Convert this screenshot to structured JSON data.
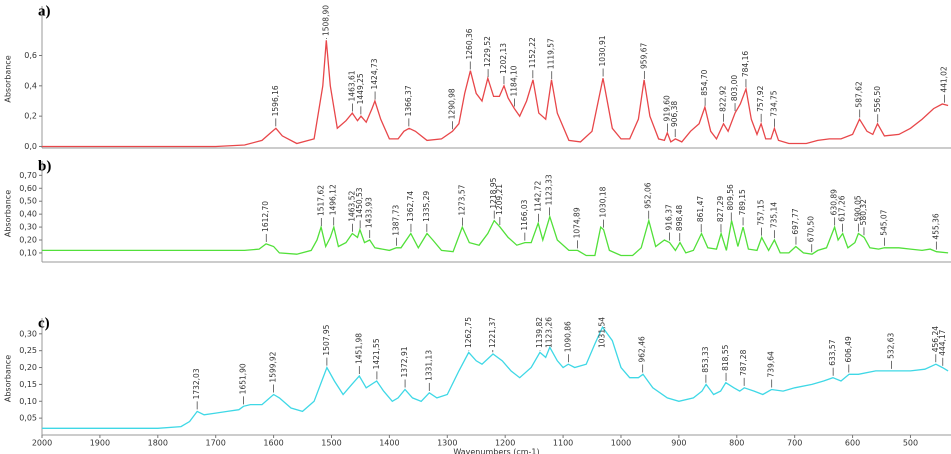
{
  "chart_data": [
    {
      "type": "line",
      "label": "a)",
      "y_label": "Absorbance",
      "color": "#e8474a",
      "xlim": [
        2000,
        430
      ],
      "ylim": [
        -0.01,
        0.9
      ],
      "yticks": [
        {
          "value": 0,
          "label": "0,0"
        },
        {
          "value": 0.2,
          "label": "0,2"
        },
        {
          "value": 0.4,
          "label": "0,4"
        },
        {
          "value": 0.6,
          "label": "0,6"
        }
      ],
      "x": [
        2000,
        1900,
        1800,
        1700,
        1650,
        1620,
        1605,
        1596,
        1585,
        1560,
        1530,
        1515,
        1509,
        1502,
        1490,
        1475,
        1464,
        1455,
        1449,
        1440,
        1430,
        1425,
        1415,
        1400,
        1385,
        1375,
        1366,
        1355,
        1335,
        1310,
        1291,
        1280,
        1270,
        1260,
        1250,
        1240,
        1230,
        1220,
        1210,
        1202,
        1195,
        1184,
        1175,
        1163,
        1152,
        1142,
        1130,
        1120,
        1110,
        1090,
        1070,
        1050,
        1031,
        1015,
        1000,
        985,
        970,
        960,
        950,
        935,
        925,
        920,
        914,
        906,
        895,
        880,
        865,
        855,
        845,
        835,
        823,
        815,
        803,
        794,
        784,
        775,
        765,
        758,
        750,
        741,
        735,
        728,
        710,
        680,
        660,
        640,
        620,
        600,
        588,
        575,
        565,
        557,
        545,
        520,
        500,
        480,
        460,
        445,
        435
      ],
      "values": [
        0,
        0,
        0,
        0,
        0.01,
        0.04,
        0.09,
        0.12,
        0.07,
        0.02,
        0.05,
        0.4,
        0.7,
        0.4,
        0.12,
        0.17,
        0.22,
        0.17,
        0.2,
        0.16,
        0.25,
        0.3,
        0.18,
        0.05,
        0.05,
        0.1,
        0.12,
        0.1,
        0.04,
        0.05,
        0.1,
        0.15,
        0.35,
        0.5,
        0.35,
        0.3,
        0.45,
        0.33,
        0.33,
        0.4,
        0.32,
        0.25,
        0.2,
        0.3,
        0.44,
        0.22,
        0.18,
        0.44,
        0.22,
        0.04,
        0.03,
        0.1,
        0.45,
        0.12,
        0.05,
        0.05,
        0.18,
        0.44,
        0.2,
        0.05,
        0.04,
        0.09,
        0.03,
        0.05,
        0.03,
        0.1,
        0.15,
        0.26,
        0.1,
        0.05,
        0.15,
        0.1,
        0.22,
        0.28,
        0.38,
        0.18,
        0.08,
        0.15,
        0.05,
        0.05,
        0.12,
        0.04,
        0.02,
        0.02,
        0.04,
        0.05,
        0.05,
        0.08,
        0.18,
        0.1,
        0.08,
        0.15,
        0.07,
        0.08,
        0.12,
        0.18,
        0.25,
        0.28,
        0.27
      ],
      "annotations": [
        {
          "value": 1596.16,
          "label": "1596,16"
        },
        {
          "value": 1508.9,
          "label": "1508,90"
        },
        {
          "value": 1463.61,
          "label": "1463,61"
        },
        {
          "value": 1449.25,
          "label": "1449,25"
        },
        {
          "value": 1424.73,
          "label": "1424,73"
        },
        {
          "value": 1366.37,
          "label": "1366,37"
        },
        {
          "value": 1290.98,
          "label": "1290,98"
        },
        {
          "value": 1260.36,
          "label": "1260,36"
        },
        {
          "value": 1229.52,
          "label": "1229,52"
        },
        {
          "value": 1202.13,
          "label": "1202,13"
        },
        {
          "value": 1184.1,
          "label": "1184,10"
        },
        {
          "value": 1152.22,
          "label": "1152,22"
        },
        {
          "value": 1119.57,
          "label": "1119,57"
        },
        {
          "value": 1030.91,
          "label": "1030,91"
        },
        {
          "value": 959.67,
          "label": "959,67"
        },
        {
          "value": 919.6,
          "label": "919,60"
        },
        {
          "value": 906.38,
          "label": "906,38"
        },
        {
          "value": 854.7,
          "label": "854,70"
        },
        {
          "value": 822.92,
          "label": "822,92"
        },
        {
          "value": 803.0,
          "label": "803,00"
        },
        {
          "value": 784.16,
          "label": "784,16"
        },
        {
          "value": 757.92,
          "label": "757,92"
        },
        {
          "value": 734.75,
          "label": "734,75"
        },
        {
          "value": 587.62,
          "label": "587,62"
        },
        {
          "value": 556.5,
          "label": "556,50"
        },
        {
          "value": 441.02,
          "label": "441,02"
        }
      ]
    },
    {
      "type": "line",
      "label": "b)",
      "y_label": "Absorbance",
      "color": "#52e03a",
      "xlim": [
        2000,
        430
      ],
      "ylim": [
        0.03,
        0.78
      ],
      "yticks": [
        {
          "value": 0.1,
          "label": "0,10"
        },
        {
          "value": 0.2,
          "label": "0,20"
        },
        {
          "value": 0.3,
          "label": "0,30"
        },
        {
          "value": 0.4,
          "label": "0,40"
        },
        {
          "value": 0.5,
          "label": "0,50"
        },
        {
          "value": 0.6,
          "label": "0,60"
        },
        {
          "value": 0.7,
          "label": "0,70"
        }
      ],
      "x": [
        2000,
        1900,
        1800,
        1700,
        1650,
        1625,
        1613,
        1600,
        1590,
        1560,
        1535,
        1525,
        1518,
        1510,
        1502,
        1496,
        1488,
        1475,
        1464,
        1455,
        1451,
        1443,
        1434,
        1425,
        1400,
        1388,
        1380,
        1363,
        1350,
        1335,
        1325,
        1310,
        1290,
        1274,
        1262,
        1245,
        1230,
        1219,
        1209,
        1195,
        1180,
        1166,
        1155,
        1143,
        1135,
        1123,
        1110,
        1090,
        1075,
        1060,
        1045,
        1035,
        1030,
        1020,
        1000,
        980,
        965,
        952,
        940,
        925,
        916,
        906,
        898,
        888,
        875,
        861,
        850,
        835,
        827,
        818,
        809,
        798,
        789,
        780,
        765,
        757,
        745,
        735,
        725,
        710,
        698,
        685,
        670,
        660,
        645,
        631,
        625,
        617,
        608,
        596,
        590,
        580,
        570,
        555,
        545,
        520,
        500,
        480,
        466,
        455,
        435
      ],
      "values": [
        0.12,
        0.12,
        0.12,
        0.12,
        0.12,
        0.13,
        0.17,
        0.15,
        0.1,
        0.09,
        0.12,
        0.2,
        0.3,
        0.15,
        0.22,
        0.3,
        0.15,
        0.18,
        0.25,
        0.22,
        0.28,
        0.18,
        0.2,
        0.14,
        0.12,
        0.14,
        0.14,
        0.25,
        0.14,
        0.25,
        0.2,
        0.12,
        0.11,
        0.3,
        0.18,
        0.16,
        0.25,
        0.35,
        0.3,
        0.22,
        0.16,
        0.18,
        0.18,
        0.33,
        0.2,
        0.38,
        0.2,
        0.12,
        0.12,
        0.08,
        0.08,
        0.3,
        0.28,
        0.12,
        0.08,
        0.08,
        0.14,
        0.35,
        0.15,
        0.2,
        0.18,
        0.12,
        0.18,
        0.1,
        0.12,
        0.25,
        0.14,
        0.13,
        0.25,
        0.12,
        0.35,
        0.15,
        0.3,
        0.13,
        0.12,
        0.22,
        0.12,
        0.2,
        0.1,
        0.1,
        0.15,
        0.1,
        0.09,
        0.12,
        0.14,
        0.3,
        0.2,
        0.25,
        0.14,
        0.18,
        0.25,
        0.22,
        0.14,
        0.13,
        0.14,
        0.14,
        0.13,
        0.12,
        0.13,
        0.11,
        0.1
      ],
      "annotations": [
        {
          "value": 1612.7,
          "label": "1612,70"
        },
        {
          "value": 1517.62,
          "label": "1517,62"
        },
        {
          "value": 1496.12,
          "label": "1496,12"
        },
        {
          "value": 1463.52,
          "label": "1463,52"
        },
        {
          "value": 1450.53,
          "label": "1450,53"
        },
        {
          "value": 1433.93,
          "label": "1433,93"
        },
        {
          "value": 1387.73,
          "label": "1387,73"
        },
        {
          "value": 1362.74,
          "label": "1362,74"
        },
        {
          "value": 1335.29,
          "label": "1335,29"
        },
        {
          "value": 1273.57,
          "label": "1273,57"
        },
        {
          "value": 1218.95,
          "label": "1218,95"
        },
        {
          "value": 1209.21,
          "label": "1209,21"
        },
        {
          "value": 1166.03,
          "label": "1166,03"
        },
        {
          "value": 1142.72,
          "label": "1142,72"
        },
        {
          "value": 1123.33,
          "label": "1123,33"
        },
        {
          "value": 1074.89,
          "label": "1074,89"
        },
        {
          "value": 1030.18,
          "label": "1030,18"
        },
        {
          "value": 952.06,
          "label": "952,06"
        },
        {
          "value": 916.37,
          "label": "916,37"
        },
        {
          "value": 898.48,
          "label": "898,48"
        },
        {
          "value": 861.47,
          "label": "861,47"
        },
        {
          "value": 827.29,
          "label": "827,29"
        },
        {
          "value": 809.56,
          "label": "809,56"
        },
        {
          "value": 789.15,
          "label": "789,15"
        },
        {
          "value": 757.15,
          "label": "757,15"
        },
        {
          "value": 735.14,
          "label": "735,14"
        },
        {
          "value": 697.77,
          "label": "697,77"
        },
        {
          "value": 670.5,
          "label": "670,50"
        },
        {
          "value": 630.89,
          "label": "630,89"
        },
        {
          "value": 617.26,
          "label": "617,26"
        },
        {
          "value": 590.05,
          "label": "590,05"
        },
        {
          "value": 580.32,
          "label": "580,32"
        },
        {
          "value": 545.07,
          "label": "545,07"
        },
        {
          "value": 455.36,
          "label": "455,36"
        }
      ]
    },
    {
      "type": "line",
      "label": "c)",
      "y_label": "Absorbance",
      "color": "#3fd8e6",
      "x_label": "Wavenumbers (cm-1)",
      "xlim": [
        2000,
        430
      ],
      "ylim": [
        0,
        0.335
      ],
      "xticks": [
        2000,
        1900,
        1800,
        1700,
        1600,
        1500,
        1400,
        1300,
        1200,
        1100,
        1000,
        900,
        800,
        700,
        600,
        500
      ],
      "yticks": [
        {
          "value": 0.05,
          "label": "0,05"
        },
        {
          "value": 0.1,
          "label": "0,10"
        },
        {
          "value": 0.15,
          "label": "0,15"
        },
        {
          "value": 0.2,
          "label": "0,20"
        },
        {
          "value": 0.25,
          "label": "0,25"
        },
        {
          "value": 0.3,
          "label": "0,30"
        }
      ],
      "x": [
        2000,
        1900,
        1800,
        1760,
        1745,
        1732,
        1720,
        1700,
        1680,
        1660,
        1652,
        1640,
        1620,
        1600,
        1590,
        1570,
        1550,
        1530,
        1508,
        1495,
        1480,
        1465,
        1452,
        1440,
        1422,
        1410,
        1395,
        1385,
        1373,
        1360,
        1345,
        1331,
        1318,
        1300,
        1280,
        1263,
        1250,
        1240,
        1221,
        1205,
        1190,
        1175,
        1155,
        1140,
        1130,
        1123,
        1110,
        1100,
        1091,
        1080,
        1060,
        1045,
        1032,
        1015,
        1000,
        985,
        970,
        962,
        945,
        920,
        900,
        875,
        860,
        853,
        840,
        828,
        819,
        805,
        795,
        787,
        770,
        755,
        740,
        720,
        700,
        670,
        650,
        634,
        620,
        606,
        590,
        560,
        533,
        520,
        500,
        475,
        456,
        445,
        435
      ],
      "values": [
        0.02,
        0.02,
        0.02,
        0.025,
        0.04,
        0.07,
        0.06,
        0.065,
        0.07,
        0.075,
        0.085,
        0.09,
        0.09,
        0.12,
        0.11,
        0.08,
        0.07,
        0.1,
        0.2,
        0.16,
        0.12,
        0.15,
        0.175,
        0.14,
        0.16,
        0.13,
        0.1,
        0.11,
        0.135,
        0.11,
        0.1,
        0.125,
        0.11,
        0.12,
        0.19,
        0.245,
        0.22,
        0.21,
        0.24,
        0.22,
        0.19,
        0.17,
        0.2,
        0.245,
        0.23,
        0.26,
        0.22,
        0.2,
        0.21,
        0.2,
        0.21,
        0.27,
        0.32,
        0.28,
        0.2,
        0.17,
        0.17,
        0.18,
        0.14,
        0.11,
        0.1,
        0.11,
        0.13,
        0.15,
        0.12,
        0.13,
        0.155,
        0.14,
        0.13,
        0.14,
        0.13,
        0.12,
        0.135,
        0.13,
        0.14,
        0.15,
        0.16,
        0.17,
        0.16,
        0.18,
        0.18,
        0.19,
        0.19,
        0.19,
        0.19,
        0.195,
        0.21,
        0.2,
        0.19
      ],
      "annotations": [
        {
          "value": 1732.03,
          "label": "1732,03"
        },
        {
          "value": 1651.9,
          "label": "1651,90"
        },
        {
          "value": 1599.92,
          "label": "1599,92"
        },
        {
          "value": 1507.95,
          "label": "1507,95"
        },
        {
          "value": 1451.98,
          "label": "1451,98"
        },
        {
          "value": 1421.55,
          "label": "1421,55"
        },
        {
          "value": 1372.91,
          "label": "1372,91"
        },
        {
          "value": 1331.13,
          "label": "1331,13"
        },
        {
          "value": 1262.75,
          "label": "1262,75"
        },
        {
          "value": 1221.37,
          "label": "1221,37"
        },
        {
          "value": 1139.82,
          "label": "1139,82"
        },
        {
          "value": 1123.26,
          "label": "1123,26"
        },
        {
          "value": 1090.86,
          "label": "1090,86"
        },
        {
          "value": 1031.54,
          "label": "1031,54"
        },
        {
          "value": 962.46,
          "label": "962,46"
        },
        {
          "value": 853.33,
          "label": "853,33"
        },
        {
          "value": 818.55,
          "label": "818,55"
        },
        {
          "value": 787.28,
          "label": "787,28"
        },
        {
          "value": 739.64,
          "label": "739,64"
        },
        {
          "value": 633.57,
          "label": "633,57"
        },
        {
          "value": 606.49,
          "label": "606,49"
        },
        {
          "value": 532.63,
          "label": "532,63"
        },
        {
          "value": 456.24,
          "label": "456,24"
        },
        {
          "value": 444.17,
          "label": "444,17"
        }
      ]
    }
  ]
}
